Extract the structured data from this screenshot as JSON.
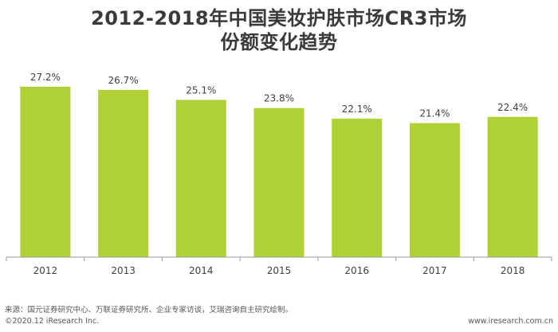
{
  "chart_data": {
    "type": "bar",
    "title_lines": [
      "2012-2018年中国美妆护肤市场CR3市场",
      "份额变化趋势"
    ],
    "categories": [
      "2012",
      "2013",
      "2014",
      "2015",
      "2016",
      "2017",
      "2018"
    ],
    "values": [
      27.2,
      26.7,
      25.1,
      23.8,
      22.1,
      21.4,
      22.4
    ],
    "value_labels": [
      "27.2%",
      "26.7%",
      "25.1%",
      "23.8%",
      "22.1%",
      "21.4%",
      "22.4%"
    ],
    "unit": "%",
    "xlabel": "",
    "ylabel": "",
    "ylim": [
      0,
      27.2
    ],
    "grid": false,
    "bar_color": "#afd135",
    "axis_color": "#9a9a9a"
  },
  "footer": {
    "source": "来源：国元证券研究中心、万联证券研究所、企业专家访谈，艾瑞咨询自主研究绘制。",
    "copyright": "©2020.12 iResearch Inc.",
    "website": "www.iresearch.com.cn"
  }
}
